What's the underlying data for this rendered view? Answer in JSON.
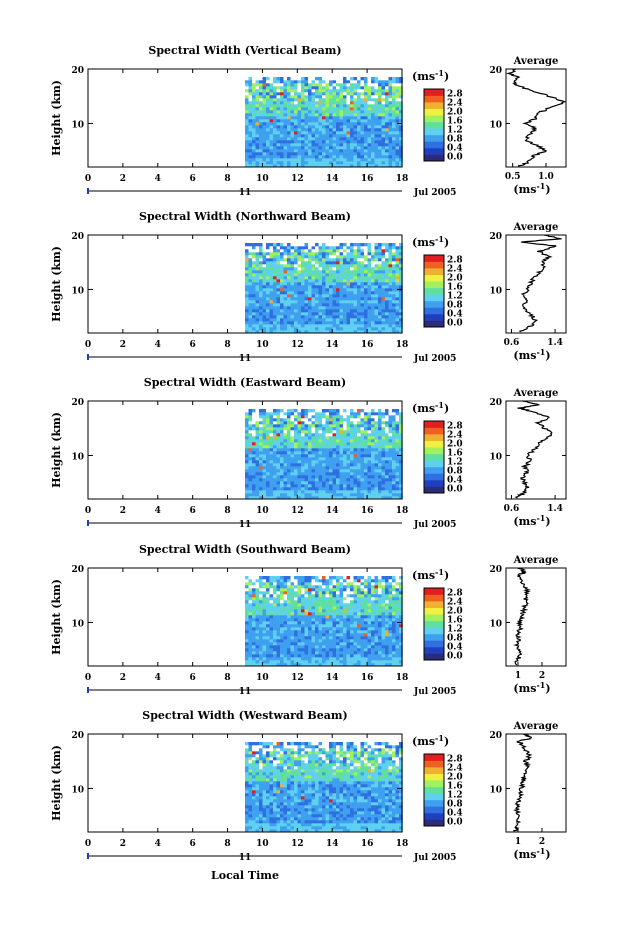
{
  "xlabel": "Local Time",
  "date_label": "Jul 2005",
  "day_label": "11",
  "unit_label": "(ms",
  "unit_exp": "-1",
  "avg_title": "Average",
  "colorbar": {
    "ticks": [
      "0.0",
      "0.4",
      "0.8",
      "1.2",
      "1.6",
      "2.0",
      "2.4",
      "2.8"
    ],
    "colors": [
      "#2b2b7a",
      "#1f3fbf",
      "#2f6fe0",
      "#3fa0f0",
      "#5fd0f0",
      "#60e0a0",
      "#a0f060",
      "#f0f040",
      "#f0b030",
      "#f06020",
      "#e02020"
    ]
  },
  "chart_data": [
    {
      "type": "heatmap",
      "title": "Spectral Width (Vertical Beam)",
      "ylabel": "Height (km)",
      "xlim": [
        0,
        18
      ],
      "ylim": [
        2,
        20
      ],
      "xticks": [
        "0",
        "2",
        "4",
        "6",
        "8",
        "10",
        "12",
        "14",
        "16",
        "18"
      ],
      "yticks": [
        "10",
        "20"
      ],
      "data_start_hour": 9,
      "average": {
        "xticks": [
          "0.5",
          "1.0"
        ],
        "xlim": [
          0.4,
          1.3
        ],
        "profile": [
          [
            2.2,
            0.6
          ],
          [
            3,
            0.75
          ],
          [
            4,
            0.8
          ],
          [
            5,
            1.0
          ],
          [
            6,
            0.85
          ],
          [
            7,
            0.7
          ],
          [
            8,
            0.75
          ],
          [
            9,
            0.85
          ],
          [
            10,
            0.7
          ],
          [
            11,
            0.85
          ],
          [
            12,
            0.9
          ],
          [
            13,
            1.1
          ],
          [
            14,
            1.28
          ],
          [
            15,
            1.05
          ],
          [
            16,
            0.8
          ],
          [
            17,
            0.55
          ],
          [
            17.8,
            0.5
          ],
          [
            18.5,
            0.6
          ],
          [
            19.2,
            0.45
          ],
          [
            20,
            0.55
          ]
        ]
      }
    },
    {
      "type": "heatmap",
      "title": "Spectral Width (Northward Beam)",
      "ylabel": "Height (km)",
      "xlim": [
        0,
        18
      ],
      "ylim": [
        2,
        20
      ],
      "xticks": [
        "0",
        "2",
        "4",
        "6",
        "8",
        "10",
        "12",
        "14",
        "16",
        "18"
      ],
      "yticks": [
        "10",
        "20"
      ],
      "data_start_hour": 9,
      "average": {
        "xticks": [
          "0.6",
          "1.4"
        ],
        "xlim": [
          0.5,
          1.6
        ],
        "profile": [
          [
            2.2,
            0.75
          ],
          [
            3,
            0.9
          ],
          [
            4,
            1.05
          ],
          [
            5,
            1.0
          ],
          [
            6,
            0.85
          ],
          [
            7,
            0.8
          ],
          [
            8,
            0.9
          ],
          [
            9,
            0.8
          ],
          [
            10,
            0.9
          ],
          [
            11,
            0.95
          ],
          [
            12,
            1.0
          ],
          [
            13,
            1.1
          ],
          [
            14,
            1.2
          ],
          [
            15,
            1.15
          ],
          [
            16,
            1.3
          ],
          [
            17,
            1.1
          ],
          [
            18,
            1.4
          ],
          [
            18.7,
            0.8
          ],
          [
            19.3,
            1.5
          ],
          [
            20,
            1.2
          ]
        ]
      }
    },
    {
      "type": "heatmap",
      "title": "Spectral Width (Eastward Beam)",
      "ylabel": "Height (km)",
      "xlim": [
        0,
        18
      ],
      "ylim": [
        2,
        20
      ],
      "xticks": [
        "0",
        "2",
        "4",
        "6",
        "8",
        "10",
        "12",
        "14",
        "16",
        "18"
      ],
      "yticks": [
        "10",
        "20"
      ],
      "data_start_hour": 9,
      "average": {
        "xticks": [
          "0.6",
          "1.4"
        ],
        "xlim": [
          0.5,
          1.6
        ],
        "profile": [
          [
            2.2,
            0.7
          ],
          [
            3,
            0.8
          ],
          [
            4,
            0.9
          ],
          [
            5,
            0.85
          ],
          [
            6,
            0.8
          ],
          [
            7,
            0.9
          ],
          [
            8,
            0.85
          ],
          [
            9,
            0.95
          ],
          [
            10,
            0.9
          ],
          [
            11,
            1.0
          ],
          [
            12,
            1.1
          ],
          [
            13,
            1.2
          ],
          [
            14,
            1.35
          ],
          [
            15,
            1.2
          ],
          [
            16,
            1.1
          ],
          [
            17,
            1.3
          ],
          [
            18,
            1.0
          ],
          [
            18.7,
            0.75
          ],
          [
            19.3,
            1.1
          ],
          [
            20,
            0.8
          ]
        ]
      }
    },
    {
      "type": "heatmap",
      "title": "Spectral Width (Southward Beam)",
      "ylabel": "Height (km)",
      "xlim": [
        0,
        18
      ],
      "ylim": [
        2,
        20
      ],
      "xticks": [
        "0",
        "2",
        "4",
        "6",
        "8",
        "10",
        "12",
        "14",
        "16",
        "18"
      ],
      "yticks": [
        "10",
        "20"
      ],
      "data_start_hour": 9,
      "average": {
        "xticks": [
          "1",
          "2"
        ],
        "xlim": [
          0.5,
          3.0
        ],
        "profile": [
          [
            2.2,
            0.9
          ],
          [
            3,
            1.0
          ],
          [
            4,
            1.1
          ],
          [
            5,
            1.0
          ],
          [
            6,
            0.95
          ],
          [
            7,
            1.05
          ],
          [
            8,
            1.0
          ],
          [
            9,
            1.1
          ],
          [
            10,
            1.05
          ],
          [
            11,
            1.15
          ],
          [
            12,
            1.2
          ],
          [
            13,
            1.3
          ],
          [
            14,
            1.35
          ],
          [
            15,
            1.3
          ],
          [
            16,
            1.4
          ],
          [
            17,
            1.2
          ],
          [
            18,
            1.1
          ],
          [
            18.7,
            1.0
          ],
          [
            19.3,
            1.3
          ],
          [
            20,
            1.1
          ]
        ]
      }
    },
    {
      "type": "heatmap",
      "title": "Spectral Width (Westward Beam)",
      "ylabel": "Height (km)",
      "xlim": [
        0,
        18
      ],
      "ylim": [
        2,
        20
      ],
      "xticks": [
        "0",
        "2",
        "4",
        "6",
        "8",
        "10",
        "12",
        "14",
        "16",
        "18"
      ],
      "yticks": [
        "10",
        "20"
      ],
      "data_start_hour": 9,
      "average": {
        "xticks": [
          "1",
          "2"
        ],
        "xlim": [
          0.5,
          3.0
        ],
        "profile": [
          [
            2.2,
            0.9
          ],
          [
            3,
            1.0
          ],
          [
            4,
            1.0
          ],
          [
            5,
            1.05
          ],
          [
            6,
            0.95
          ],
          [
            7,
            1.0
          ],
          [
            8,
            1.05
          ],
          [
            9,
            1.1
          ],
          [
            10,
            1.15
          ],
          [
            11,
            1.2
          ],
          [
            12,
            1.25
          ],
          [
            13,
            1.35
          ],
          [
            14,
            1.4
          ],
          [
            15,
            1.3
          ],
          [
            16,
            1.5
          ],
          [
            17,
            1.3
          ],
          [
            18,
            1.2
          ],
          [
            18.7,
            1.0
          ],
          [
            19.3,
            1.6
          ],
          [
            20,
            1.2
          ]
        ]
      }
    }
  ]
}
